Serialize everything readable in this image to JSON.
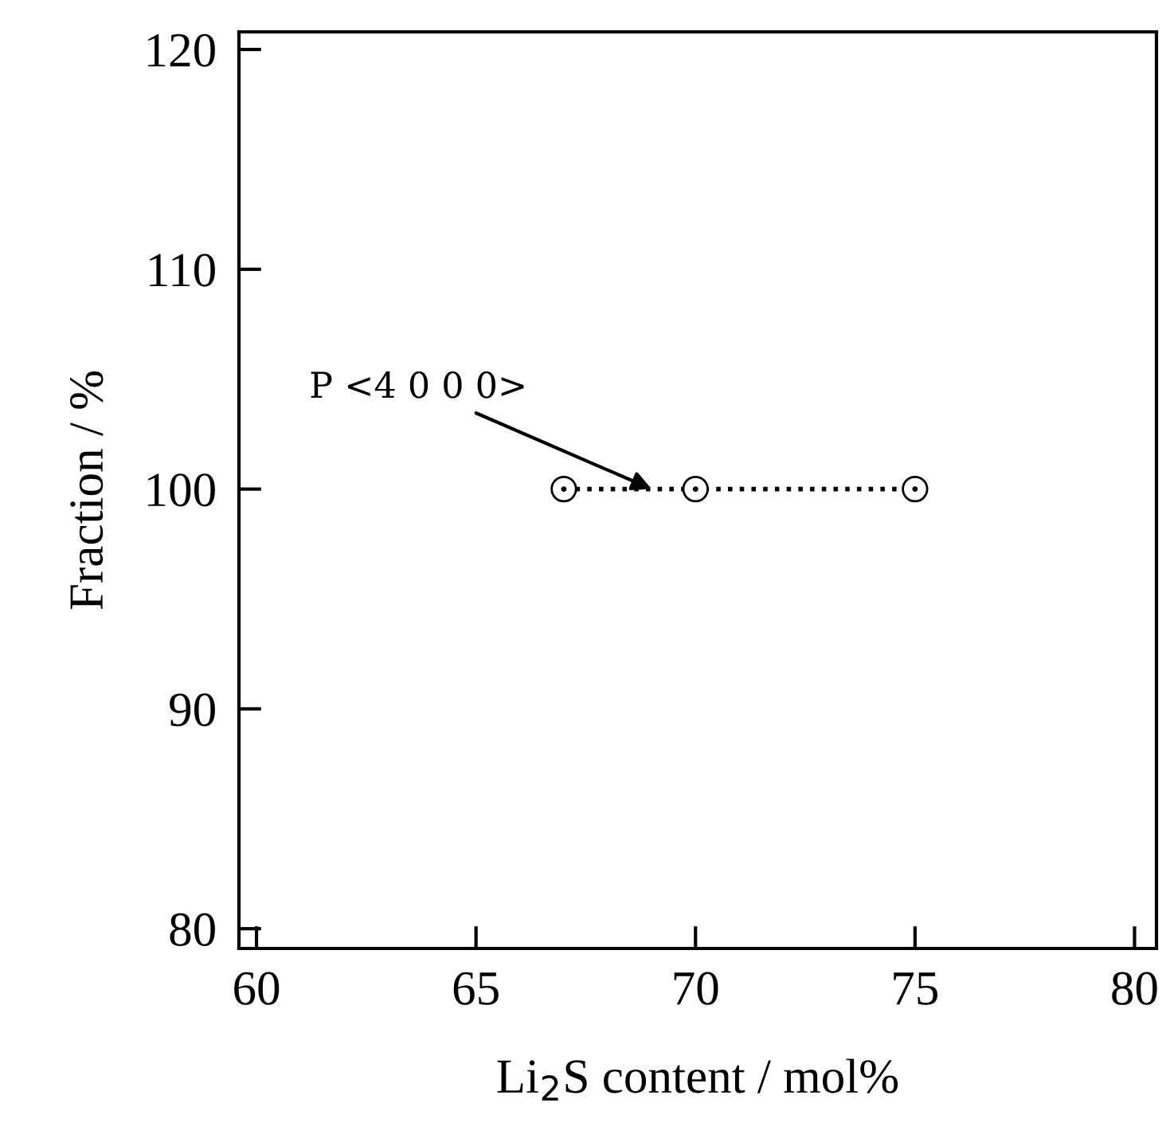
{
  "chart_data": {
    "type": "line",
    "xlabel": "Li$_{2}$S content / mol%",
    "ylabel": "Fraction / %",
    "x": [
      67,
      70,
      75
    ],
    "series": [
      {
        "values": [
          100,
          100,
          100
        ],
        "color": "#000000",
        "marker": "circle",
        "line_style": "dotted"
      }
    ],
    "annotations": [
      {
        "text": "P <4 0 0 0>",
        "x": 69,
        "y": 100
      }
    ],
    "xlim": [
      59.6,
      80.5
    ],
    "xticks": [
      60,
      65,
      70,
      75,
      80
    ],
    "ylim": [
      79.1,
      120.8
    ],
    "yticks": [
      80,
      90,
      100,
      110,
      120
    ],
    "grid": false,
    "legend": false
  }
}
